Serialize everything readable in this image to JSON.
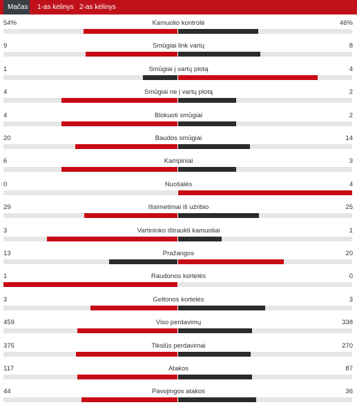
{
  "tabs": [
    {
      "label": "Mačas",
      "active": true
    },
    {
      "label": "1-as kėlinys",
      "active": false
    },
    {
      "label": "2-as kėlinys",
      "active": false
    }
  ],
  "colors": {
    "tabbar": "#c0111a",
    "active_tab": "#3a3f45",
    "bar_highlight": "#c80a14",
    "bar_other": "#2b2b2b",
    "track": "#e6e6e6"
  },
  "stats": [
    {
      "label": "Kamuolio kontrolė",
      "home": "54%",
      "away": "46%",
      "home_val": 54,
      "away_val": 46
    },
    {
      "label": "Smūgiai link vartų",
      "home": "9",
      "away": "8",
      "home_val": 9,
      "away_val": 8
    },
    {
      "label": "Smūgiai į vartų plotą",
      "home": "1",
      "away": "4",
      "home_val": 1,
      "away_val": 4
    },
    {
      "label": "Smūgiai ne į vartų plotą",
      "home": "4",
      "away": "2",
      "home_val": 4,
      "away_val": 2
    },
    {
      "label": "Blokuoti smūgiai",
      "home": "4",
      "away": "2",
      "home_val": 4,
      "away_val": 2
    },
    {
      "label": "Baudos smūgiai",
      "home": "20",
      "away": "14",
      "home_val": 20,
      "away_val": 14
    },
    {
      "label": "Kampiniai",
      "home": "6",
      "away": "3",
      "home_val": 6,
      "away_val": 3
    },
    {
      "label": "Nuošalės",
      "home": "0",
      "away": "4",
      "home_val": 0,
      "away_val": 4
    },
    {
      "label": "Išsimetimai iš užribio",
      "home": "29",
      "away": "25",
      "home_val": 29,
      "away_val": 25
    },
    {
      "label": "Vartininko ištraukti kamuoliai",
      "home": "3",
      "away": "1",
      "home_val": 3,
      "away_val": 1
    },
    {
      "label": "Pražangos",
      "home": "13",
      "away": "20",
      "home_val": 13,
      "away_val": 20
    },
    {
      "label": "Raudonos kortelės",
      "home": "1",
      "away": "0",
      "home_val": 1,
      "away_val": 0
    },
    {
      "label": "Geltonos kortelės",
      "home": "3",
      "away": "3",
      "home_val": 3,
      "away_val": 3
    },
    {
      "label": "Viso perdavimų",
      "home": "459",
      "away": "338",
      "home_val": 459,
      "away_val": 338
    },
    {
      "label": "Tikslūs perdavimai",
      "home": "375",
      "away": "270",
      "home_val": 375,
      "away_val": 270
    },
    {
      "label": "Atakos",
      "home": "117",
      "away": "87",
      "home_val": 117,
      "away_val": 87
    },
    {
      "label": "Pavojingos atakos",
      "home": "44",
      "away": "36",
      "home_val": 44,
      "away_val": 36
    }
  ]
}
